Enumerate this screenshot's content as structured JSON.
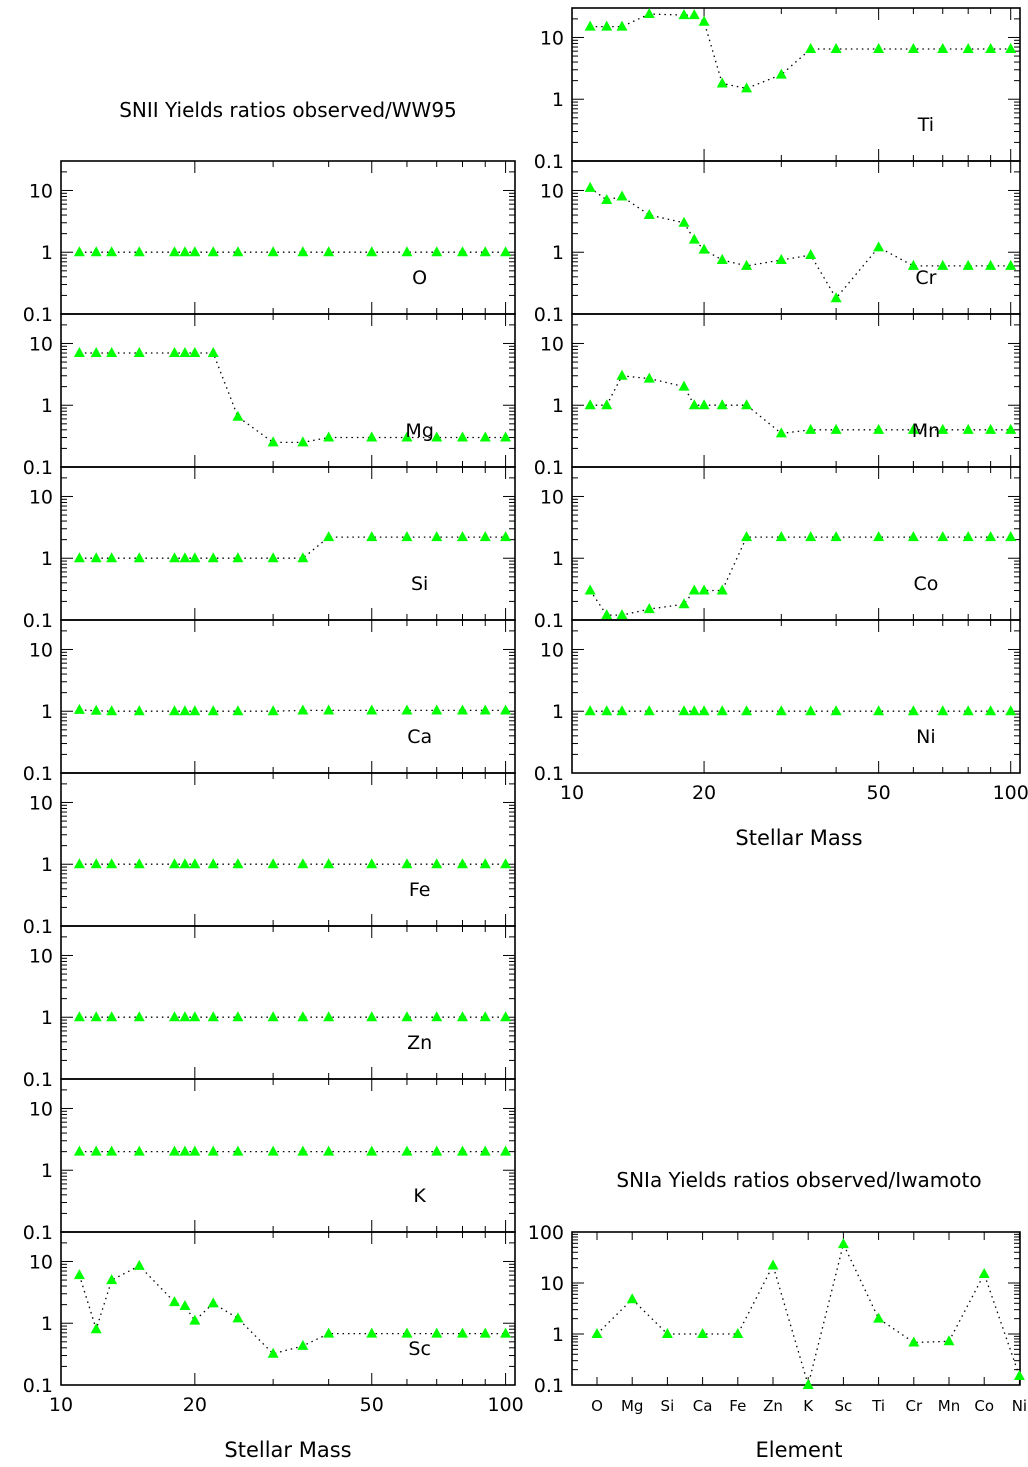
{
  "colors": {
    "marker": "#00ff00",
    "line": "#000000",
    "background": "#ffffff"
  },
  "chart_data": [
    {
      "type": "scatter",
      "subtype": "line-with-markers, stacked panels",
      "title": "SNII Yields ratios observed/WW95",
      "xlabel": "Stellar Mass",
      "xscale": "log",
      "yscale": "log",
      "xlim": [
        10,
        105
      ],
      "ylim": [
        0.1,
        30
      ],
      "xticks": [
        "10",
        "20",
        "50",
        "100"
      ],
      "yticks": [
        "0.1",
        "1",
        "10"
      ],
      "marker": "triangle",
      "line_style": "dotted",
      "x": [
        11,
        12,
        13,
        15,
        18,
        19,
        20,
        22,
        25,
        30,
        35,
        40,
        50,
        60,
        70,
        80,
        90,
        100
      ],
      "panels": [
        {
          "element": "O",
          "y": [
            1,
            1,
            1,
            1,
            1,
            1,
            1,
            1,
            1,
            1,
            1,
            1,
            1,
            1,
            1,
            1,
            1,
            1
          ]
        },
        {
          "element": "Mg",
          "y": [
            7,
            7,
            7,
            7,
            7,
            7,
            7,
            7,
            0.65,
            0.25,
            0.25,
            0.3,
            0.3,
            0.3,
            0.3,
            0.3,
            0.3,
            0.3
          ]
        },
        {
          "element": "Si",
          "y": [
            1,
            1,
            1,
            1,
            1,
            1,
            1,
            1,
            1,
            1,
            1,
            2.2,
            2.2,
            2.2,
            2.2,
            2.2,
            2.2,
            2.2
          ]
        },
        {
          "element": "Ca",
          "y": [
            1.05,
            1.02,
            1,
            1,
            1,
            1,
            1,
            1,
            1,
            1,
            1.03,
            1.03,
            1.03,
            1.03,
            1.03,
            1.03,
            1.03,
            1.03
          ]
        },
        {
          "element": "Fe",
          "y": [
            1,
            1,
            1,
            1,
            1,
            1,
            1,
            1,
            1,
            1,
            1,
            1,
            1,
            1,
            1,
            1,
            1,
            1
          ]
        },
        {
          "element": "Zn",
          "y": [
            1,
            1,
            1,
            1,
            1,
            1,
            1,
            1,
            1,
            1,
            1,
            1,
            1,
            1,
            1,
            1,
            1,
            1
          ]
        },
        {
          "element": "K",
          "y": [
            2,
            2,
            2,
            2,
            2,
            2,
            2,
            2,
            2,
            2,
            2,
            2,
            2,
            2,
            2,
            2,
            2,
            2
          ]
        },
        {
          "element": "Sc",
          "y": [
            6,
            0.8,
            5,
            8.5,
            2.2,
            1.9,
            1.1,
            2.1,
            1.2,
            0.32,
            0.43,
            0.68,
            0.68,
            0.68,
            0.68,
            0.68,
            0.68,
            0.68
          ]
        },
        {
          "element": "Ti",
          "y": [
            15,
            15,
            15,
            24,
            23,
            23,
            18,
            1.8,
            1.5,
            2.5,
            6.5,
            6.5,
            6.5,
            6.5,
            6.5,
            6.5,
            6.5,
            6.5
          ]
        },
        {
          "element": "Cr",
          "y": [
            11,
            7,
            8,
            4,
            3,
            1.6,
            1.1,
            0.75,
            0.6,
            0.75,
            0.9,
            0.18,
            1.2,
            0.6,
            0.6,
            0.6,
            0.6,
            0.6
          ]
        },
        {
          "element": "Mn",
          "y": [
            1,
            1,
            3,
            2.7,
            2,
            1,
            1,
            1,
            1,
            0.35,
            0.4,
            0.4,
            0.4,
            0.4,
            0.4,
            0.4,
            0.4,
            0.4
          ]
        },
        {
          "element": "Co",
          "y": [
            0.3,
            0.12,
            0.12,
            0.15,
            0.18,
            0.3,
            0.3,
            0.3,
            2.2,
            2.2,
            2.2,
            2.2,
            2.2,
            2.2,
            2.2,
            2.2,
            2.2,
            2.2
          ]
        },
        {
          "element": "Ni",
          "y": [
            1,
            1,
            1,
            1,
            1,
            1,
            1,
            1,
            1,
            1,
            1,
            1,
            1,
            1,
            1,
            1,
            1,
            1
          ]
        }
      ]
    },
    {
      "type": "scatter",
      "subtype": "line-with-markers",
      "title": "SNIa Yields ratios observed/Iwamoto",
      "xlabel": "Element",
      "yscale": "log",
      "ylim": [
        0.1,
        100
      ],
      "yticks": [
        "0.1",
        "1",
        "10",
        "100"
      ],
      "marker": "triangle",
      "line_style": "dotted",
      "categories": [
        "O",
        "Mg",
        "Si",
        "Ca",
        "Fe",
        "Zn",
        "K",
        "Sc",
        "Ti",
        "Cr",
        "Mn",
        "Co",
        "Ni"
      ],
      "values": [
        1,
        4.8,
        1,
        1,
        1,
        22,
        0.1,
        58,
        2,
        0.68,
        0.72,
        15,
        0.15
      ]
    }
  ]
}
